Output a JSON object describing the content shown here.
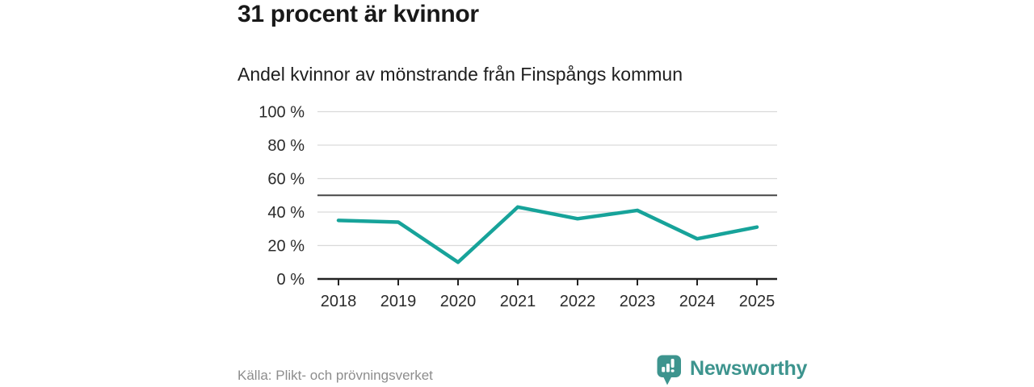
{
  "page": {
    "title": "31 procent är kvinnor",
    "subtitle": "Andel kvinnor av mönstrande från Finspångs kommun",
    "source": "Källa: Plikt- och prövningsverket",
    "brand": {
      "name": "Newsworthy",
      "color": "#3d948e"
    }
  },
  "chart_data": {
    "type": "line",
    "title": "31 procent är kvinnor",
    "subtitle": "Andel kvinnor av mönstrande från Finspångs kommun",
    "categories": [
      "2018",
      "2019",
      "2020",
      "2021",
      "2022",
      "2023",
      "2024",
      "2025"
    ],
    "series": [
      {
        "name": "Andel kvinnor av mönstrande",
        "values": [
          35,
          34,
          10,
          43,
          36,
          41,
          24,
          31
        ]
      }
    ],
    "unit": "%",
    "ylim": [
      0,
      100
    ],
    "y_ticks": [
      0,
      20,
      40,
      60,
      80,
      100
    ],
    "y_tick_labels": [
      "0 %",
      "20 %",
      "40 %",
      "60 %",
      "80 %",
      "100 %"
    ],
    "reference_line": 50,
    "grid": true,
    "legend": "none",
    "line_color": "#17a39a",
    "grid_color": "#d9d9d9",
    "axis_color": "#222222",
    "reference_line_color": "#474747",
    "tick_label_color": "#2b2b2b"
  }
}
